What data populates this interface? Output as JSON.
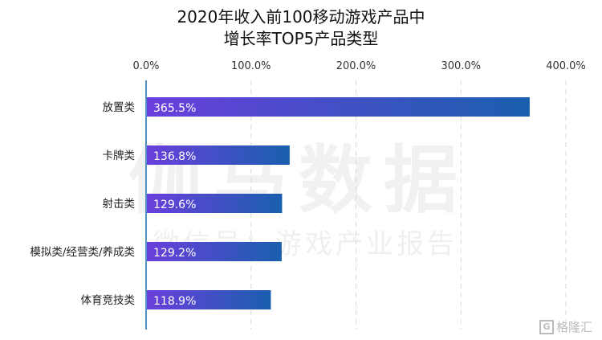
{
  "chart_data": {
    "type": "bar",
    "orientation": "horizontal",
    "title": "2020年收入前100移动游戏产品中\n增长率TOP5产品类型",
    "title_lines": [
      "2020年收入前100移动游戏产品中",
      "增长率TOP5产品类型"
    ],
    "categories": [
      "放置类",
      "卡牌类",
      "射击类",
      "模拟类/经营类/养成类",
      "体育竞技类"
    ],
    "values": [
      365.5,
      136.8,
      129.6,
      129.2,
      118.9
    ],
    "data_labels": [
      "365.5%",
      "136.8%",
      "129.6%",
      "129.2%",
      "118.9%"
    ],
    "xlim": [
      0,
      400
    ],
    "ticks": [
      0,
      100,
      200,
      300,
      400
    ],
    "tick_labels": [
      "0.0%",
      "100.0%",
      "200.0%",
      "300.0%",
      "400.0%"
    ],
    "xlabel": "",
    "ylabel": "",
    "grid": true,
    "axis_position": "top",
    "colors": {
      "bar_start": "#6a3fdc",
      "bar_end": "#1a5fae"
    }
  },
  "watermark": {
    "main": "伽马数据",
    "sub": "微信号：游戏产业报告"
  },
  "logo": {
    "mark": "G",
    "text": "格隆汇"
  }
}
